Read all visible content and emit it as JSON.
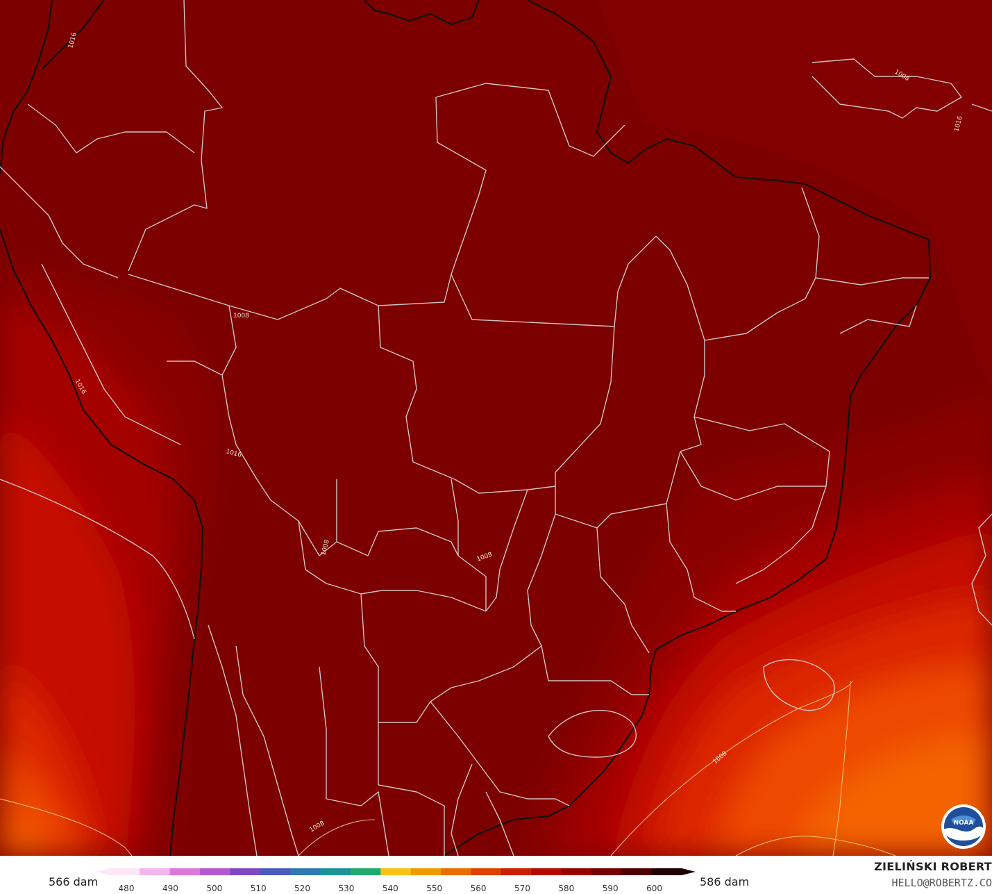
{
  "map": {
    "isobar_labels": [
      "1008",
      "1008",
      "1008",
      "1008",
      "1008",
      "1008",
      "1016",
      "1016",
      "1016",
      "1016"
    ],
    "fill_colors": {
      "darkest": "#7c0000",
      "dark": "#8a0000",
      "mid": "#a50000",
      "red": "#c41000",
      "redorange": "#dd2600",
      "orange": "#ee4a00",
      "lightorange": "#f46400"
    },
    "boundary_color": "#d8d8d8",
    "coast_color": "#111111",
    "logo": {
      "text": "NOAA",
      "icon": "noaa-logo-icon"
    }
  },
  "legend": {
    "left_label": "566 dam",
    "right_label": "586 dam",
    "ticks": [
      "480",
      "490",
      "500",
      "510",
      "520",
      "530",
      "540",
      "550",
      "560",
      "570",
      "580",
      "590",
      "600"
    ],
    "colors": [
      "#fde6f6",
      "#f3b6ea",
      "#dc78dc",
      "#b458d2",
      "#7e48c6",
      "#4a5ac0",
      "#2e78b4",
      "#1c9496",
      "#20aa6e",
      "#fac214",
      "#f29a00",
      "#ec6c00",
      "#e04000",
      "#cc1e00",
      "#b40800",
      "#980000",
      "#780000",
      "#500000",
      "#200000"
    ]
  },
  "credit": {
    "name": "ZIELIŃSKI ROBERT",
    "email": "HELLO@ROBERTZ.CO"
  }
}
